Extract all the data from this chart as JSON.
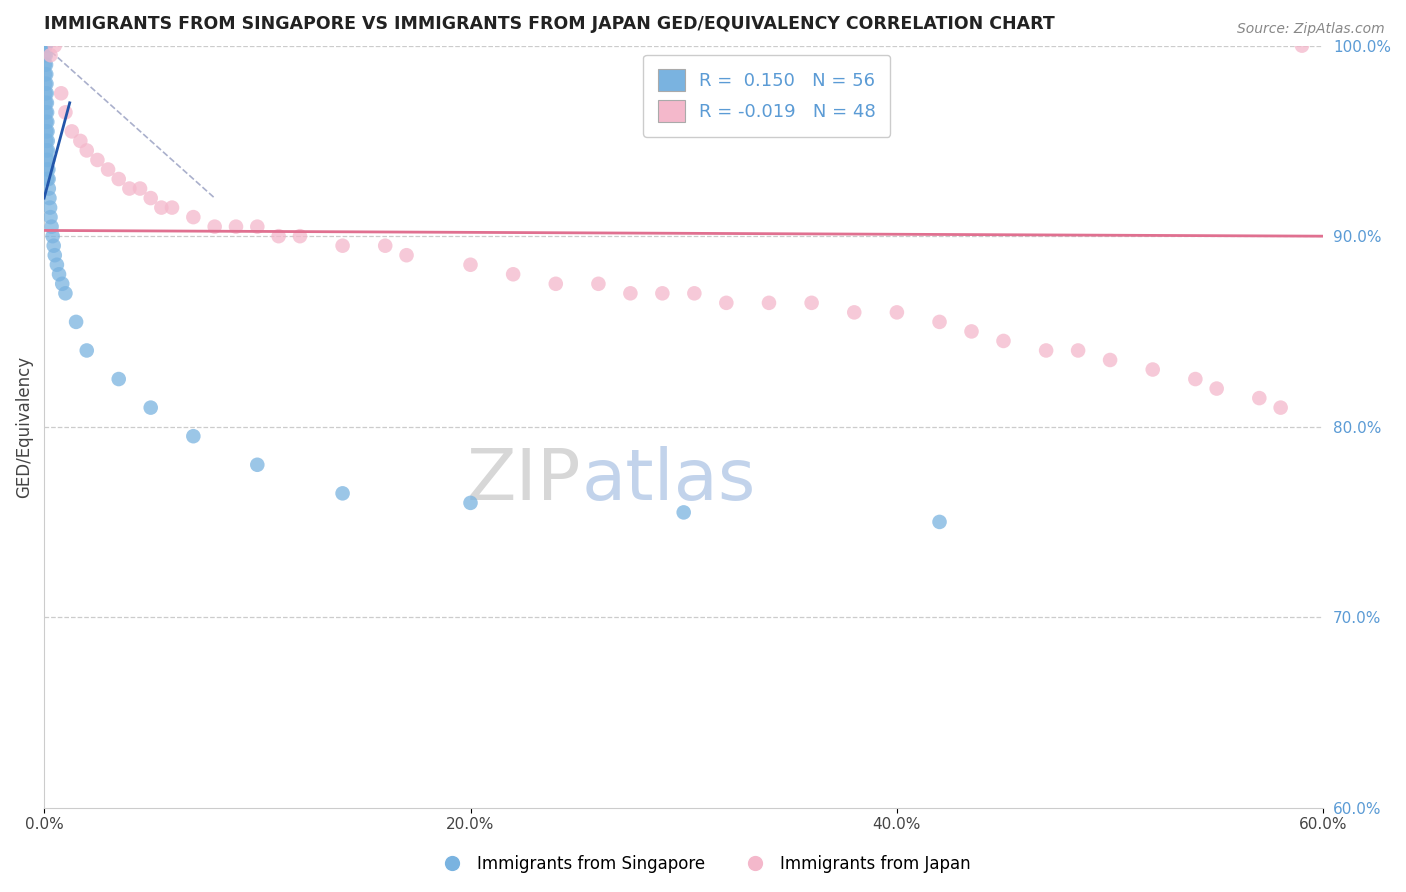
{
  "title": "IMMIGRANTS FROM SINGAPORE VS IMMIGRANTS FROM JAPAN GED/EQUIVALENCY CORRELATION CHART",
  "source": "Source: ZipAtlas.com",
  "ylabel": "GED/Equivalency",
  "xlim": [
    0.0,
    60.0
  ],
  "ylim": [
    60.0,
    100.0
  ],
  "background_color": "#ffffff",
  "singapore_color": "#7ab3e0",
  "japan_color": "#f4b8cb",
  "singapore_R": 0.15,
  "singapore_N": 56,
  "japan_R": -0.019,
  "japan_N": 48,
  "singapore_line_color": "#2255aa",
  "japan_line_color": "#e07090",
  "watermark_color": "#dde8f5",
  "watermark_color2": "#e8dde5",
  "sg_x": [
    0.02,
    0.02,
    0.03,
    0.03,
    0.04,
    0.04,
    0.05,
    0.05,
    0.06,
    0.06,
    0.07,
    0.07,
    0.08,
    0.08,
    0.09,
    0.09,
    0.1,
    0.1,
    0.1,
    0.11,
    0.11,
    0.12,
    0.12,
    0.13,
    0.13,
    0.14,
    0.15,
    0.15,
    0.16,
    0.17,
    0.18,
    0.19,
    0.2,
    0.21,
    0.22,
    0.25,
    0.28,
    0.3,
    0.35,
    0.4,
    0.45,
    0.5,
    0.6,
    0.7,
    0.85,
    1.0,
    1.5,
    2.0,
    3.5,
    5.0,
    7.0,
    10.0,
    14.0,
    20.0,
    30.0,
    42.0
  ],
  "sg_y": [
    100.0,
    99.5,
    100.0,
    99.0,
    100.0,
    98.5,
    100.0,
    98.0,
    100.0,
    97.5,
    100.0,
    97.0,
    99.5,
    96.5,
    99.0,
    96.0,
    98.5,
    95.5,
    95.0,
    98.0,
    94.5,
    97.5,
    94.0,
    97.0,
    93.5,
    96.5,
    96.0,
    93.0,
    95.5,
    95.0,
    94.5,
    94.0,
    93.5,
    93.0,
    92.5,
    92.0,
    91.5,
    91.0,
    90.5,
    90.0,
    89.5,
    89.0,
    88.5,
    88.0,
    87.5,
    87.0,
    85.5,
    84.0,
    82.5,
    81.0,
    79.5,
    78.0,
    76.5,
    76.0,
    75.5,
    75.0
  ],
  "jp_x": [
    0.3,
    0.5,
    0.8,
    1.0,
    1.3,
    1.7,
    2.0,
    2.5,
    3.0,
    3.5,
    4.0,
    4.5,
    5.0,
    5.5,
    6.0,
    7.0,
    8.0,
    9.0,
    10.0,
    11.0,
    12.0,
    14.0,
    16.0,
    17.0,
    20.0,
    22.0,
    24.0,
    26.0,
    27.5,
    29.0,
    30.5,
    32.0,
    34.0,
    36.0,
    38.0,
    40.0,
    42.0,
    43.5,
    45.0,
    47.0,
    48.5,
    50.0,
    52.0,
    54.0,
    55.0,
    57.0,
    58.0,
    59.0
  ],
  "jp_y": [
    99.5,
    100.0,
    97.5,
    96.5,
    95.5,
    95.0,
    94.5,
    94.0,
    93.5,
    93.0,
    92.5,
    92.5,
    92.0,
    91.5,
    91.5,
    91.0,
    90.5,
    90.5,
    90.5,
    90.0,
    90.0,
    89.5,
    89.5,
    89.0,
    88.5,
    88.0,
    87.5,
    87.5,
    87.0,
    87.0,
    87.0,
    86.5,
    86.5,
    86.5,
    86.0,
    86.0,
    85.5,
    85.0,
    84.5,
    84.0,
    84.0,
    83.5,
    83.0,
    82.5,
    82.0,
    81.5,
    81.0,
    100.0
  ],
  "dashed_line": [
    [
      0.02,
      8.0
    ],
    [
      100.0,
      92.0
    ]
  ],
  "jp_trend_y_intercept": 90.3,
  "jp_trend_slope": -0.005
}
